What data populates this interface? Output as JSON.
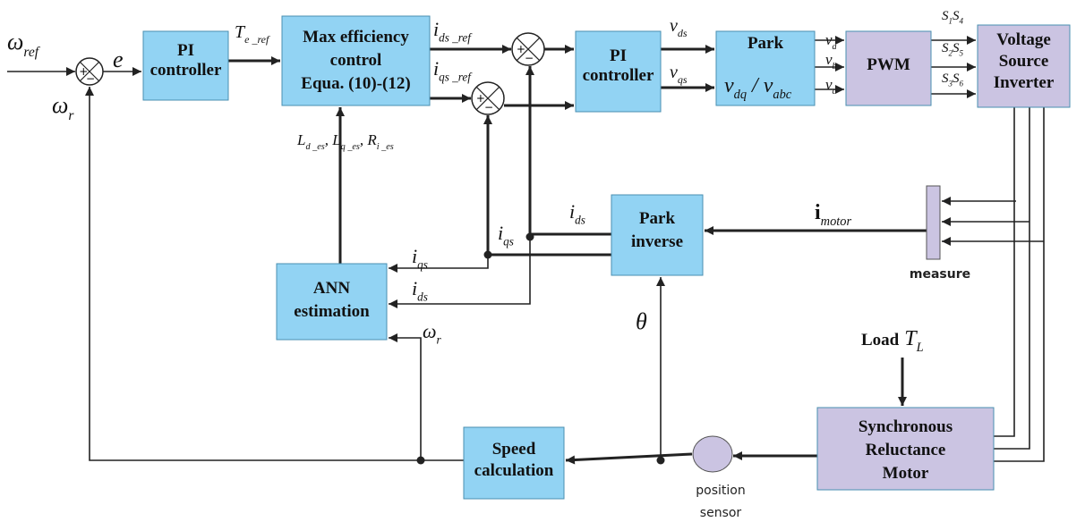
{
  "blocks": [
    {
      "lines": [
        "PI",
        "controller"
      ]
    },
    {
      "lines": [
        "Max efficiency",
        "control",
        "Equa. (10)-(12)"
      ]
    },
    {
      "lines": [
        "PI",
        "controller"
      ]
    },
    {
      "lines": [
        "Park"
      ]
    },
    {
      "lines": [
        "PWM"
      ]
    },
    {
      "lines": [
        "Voltage",
        "Source",
        "Inverter"
      ]
    },
    {
      "lines": [
        "Park",
        "inverse"
      ]
    },
    {
      "lines": [
        "ANN",
        "estimation"
      ]
    },
    {
      "lines": [
        "Synchronous",
        "Reluctance",
        "Motor"
      ]
    },
    {
      "lines": [
        "Speed",
        "calculation"
      ]
    }
  ],
  "summers": [
    {
      "signs": [
        "+",
        "−"
      ]
    },
    {
      "signs": [
        "+",
        "−"
      ]
    },
    {
      "signs": [
        "+",
        "−"
      ]
    }
  ],
  "captions": {
    "measure": "measure",
    "sensor": [
      "position",
      "sensor"
    ]
  },
  "labels": [
    {
      "parts": [
        [
          "ω",
          "ref"
        ]
      ]
    },
    {
      "parts": [
        [
          "e"
        ]
      ]
    },
    {
      "parts": [
        [
          "ω",
          "r"
        ]
      ]
    },
    {
      "parts": [
        [
          "T",
          "e _ref"
        ]
      ]
    },
    {
      "parts": [
        [
          "i",
          "ds _ref"
        ]
      ]
    },
    {
      "parts": [
        [
          "i",
          "qs _ref"
        ]
      ]
    },
    {
      "parts": [
        [
          "v",
          "ds"
        ]
      ]
    },
    {
      "parts": [
        [
          "v",
          "qs"
        ]
      ]
    },
    {
      "parts": [
        [
          "v",
          "dq"
        ],
        [
          " / "
        ],
        [
          "v",
          "abc"
        ]
      ]
    },
    {
      "parts": [
        [
          "v",
          "a"
        ]
      ]
    },
    {
      "parts": [
        [
          "v",
          "b"
        ]
      ]
    },
    {
      "parts": [
        [
          "v",
          "c"
        ]
      ]
    },
    {
      "parts": [
        [
          "S",
          "1"
        ],
        [
          "S",
          "4"
        ]
      ]
    },
    {
      "parts": [
        [
          "S",
          "2"
        ],
        [
          "S",
          "5"
        ]
      ]
    },
    {
      "parts": [
        [
          "S",
          "3"
        ],
        [
          "S",
          "6"
        ]
      ]
    },
    {
      "parts": [
        [
          "L",
          "d _es"
        ],
        [
          ", "
        ],
        [
          "L",
          "q _es"
        ],
        [
          ", "
        ],
        [
          "R",
          "i _es"
        ]
      ]
    },
    {
      "parts": [
        [
          "i",
          "motor"
        ]
      ]
    },
    {
      "parts": [
        [
          "i",
          "ds"
        ]
      ]
    },
    {
      "parts": [
        [
          "i",
          "qs"
        ]
      ]
    },
    {
      "parts": [
        [
          "i",
          "qs"
        ]
      ]
    },
    {
      "parts": [
        [
          "i",
          "ds"
        ]
      ]
    },
    {
      "parts": [
        [
          "ω",
          "r"
        ]
      ]
    },
    {
      "parts": [
        [
          "θ"
        ]
      ]
    },
    {
      "parts": [
        [
          "Load"
        ],
        [
          "T",
          "L"
        ]
      ]
    }
  ]
}
